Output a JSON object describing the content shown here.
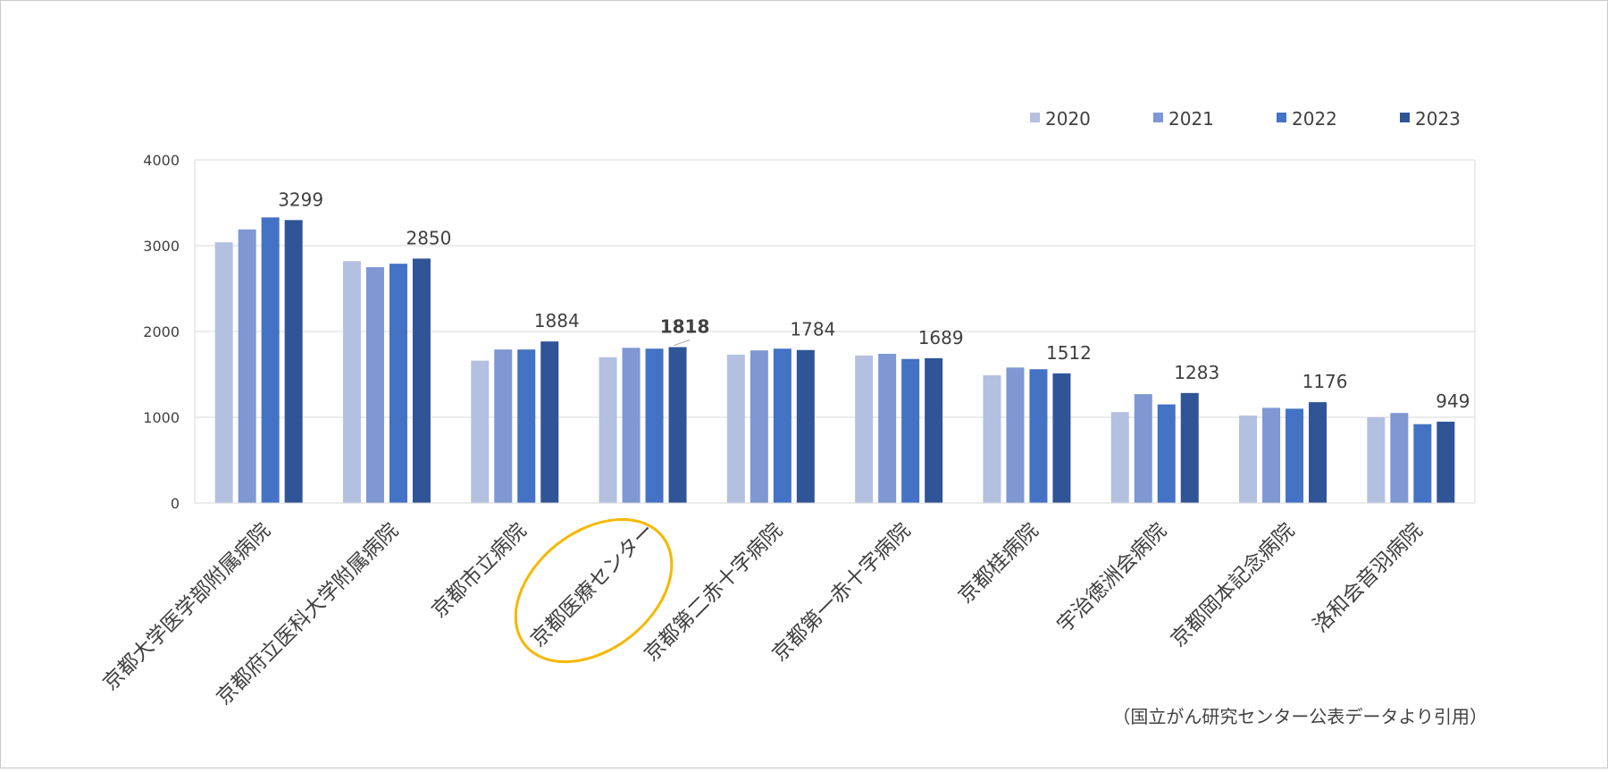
{
  "chart_data": {
    "type": "bar",
    "title": "",
    "xlabel": "",
    "ylabel": "",
    "ylim": [
      0,
      4000
    ],
    "yticks": [
      0,
      1000,
      2000,
      3000,
      4000
    ],
    "grid": true,
    "legend_position": "top-right",
    "categories": [
      "京都大学医学部附属病院",
      "京都府立医科大学附属病院",
      "京都市立病院",
      "京都医療センター",
      "京都第二赤十字病院",
      "京都第一赤十字病院",
      "京都桂病院",
      "宇治徳洲会病院",
      "京都岡本記念病院",
      "洛和会音羽病院"
    ],
    "series": [
      {
        "name": "2020",
        "color": "#b4c0e0",
        "values": [
          3040,
          2820,
          1660,
          1700,
          1730,
          1720,
          1490,
          1060,
          1020,
          1000
        ]
      },
      {
        "name": "2021",
        "color": "#7f97d3",
        "values": [
          3190,
          2750,
          1790,
          1810,
          1780,
          1740,
          1580,
          1270,
          1110,
          1050
        ]
      },
      {
        "name": "2022",
        "color": "#4472c4",
        "values": [
          3330,
          2790,
          1790,
          1800,
          1800,
          1680,
          1560,
          1150,
          1100,
          920
        ]
      },
      {
        "name": "2023",
        "color": "#2f5597",
        "values": [
          3299,
          2850,
          1884,
          1818,
          1784,
          1689,
          1512,
          1283,
          1176,
          949
        ]
      }
    ],
    "data_labels": [
      "3299",
      "2850",
      "1884",
      "1818",
      "1784",
      "1689",
      "1512",
      "1283",
      "1176",
      "949"
    ],
    "highlighted_category": "京都医療センター",
    "highlight_color": "#f5b800",
    "source_note": "（国立がん研究センター公表データより引用）"
  }
}
